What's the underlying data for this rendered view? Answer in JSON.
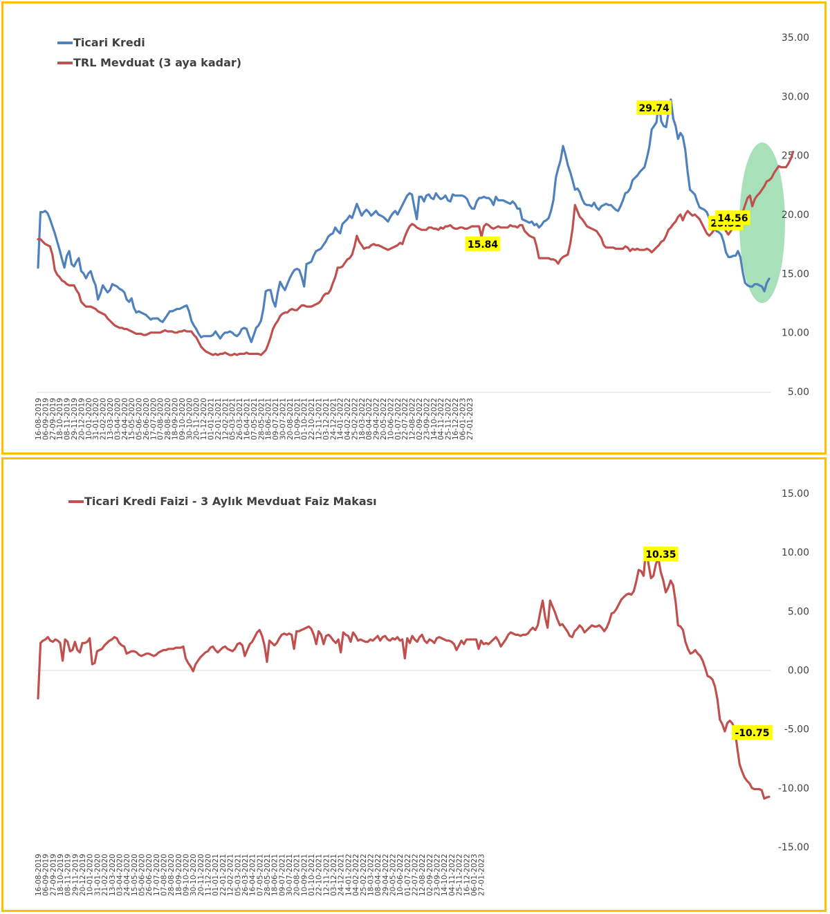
{
  "colors": {
    "frame": "#FFC000",
    "blue": "#4F81BD",
    "red": "#C0504D",
    "callout": "#FFFF00",
    "ellipse": "#92D9A8"
  },
  "x_labels": [
    "16-08-2019",
    "06-09-2019",
    "27-09-2019",
    "18-10-2019",
    "08-11-2019",
    "29-11-2019",
    "20-12-2019",
    "10-01-2020",
    "31-01-2020",
    "21-02-2020",
    "13-03-2020",
    "03-04-2020",
    "24-04-2020",
    "15-05-2020",
    "05-06-2020",
    "26-06-2020",
    "17-07-2020",
    "07-08-2020",
    "28-08-2020",
    "18-09-2020",
    "09-10-2020",
    "30-10-2020",
    "20-11-2020",
    "11-12-2020",
    "01-01-2021",
    "22-01-2021",
    "12-02-2021",
    "05-03-2021",
    "26-03-2021",
    "16-04-2021",
    "07-05-2021",
    "28-05-2021",
    "18-06-2021",
    "09-07-2021",
    "30-07-2021",
    "20-08-2021",
    "10-09-2021",
    "01-10-2021",
    "22-10-2021",
    "12-11-2021",
    "03-12-2021",
    "24-12-2021",
    "14-01-2022",
    "04-02-2022",
    "25-02-2022",
    "18-03-2022",
    "08-04-2022",
    "29-04-2022",
    "20-05-2022",
    "10-06-2022",
    "01-07-2022",
    "22-07-2022",
    "12-08-2022",
    "02-09-2022",
    "23-09-2022",
    "14-10-2022",
    "04-11-2022",
    "25-11-2022",
    "16-12-2022",
    "06-01-2023",
    "27-01-2023"
  ],
  "chart_data": [
    {
      "type": "line",
      "title": "",
      "ylim": [
        5,
        35
      ],
      "yticks": [
        "35.00",
        "30.00",
        "25.00",
        "20.00",
        "15.00",
        "10.00",
        "5.00"
      ],
      "legend_position": "top-left",
      "highlight": "ellipse over last weeks",
      "annotations": [
        {
          "label": "29.74",
          "series": 0,
          "index": 257
        },
        {
          "label": "25.31",
          "series": 1,
          "index": 280
        },
        {
          "label": "15.84",
          "series": 1,
          "index": 189
        },
        {
          "label": "14.56",
          "series": 0,
          "index": 280
        }
      ],
      "series": [
        {
          "name": "Ticari Kredi",
          "color": "#4F81BD",
          "values": [
            15.5,
            20.2,
            20.2,
            20.3,
            20.1,
            19.6,
            19.0,
            18.4,
            17.7,
            17.0,
            16.2,
            15.5,
            16.5,
            16.9,
            15.8,
            15.6,
            16.0,
            16.3,
            15.2,
            15.0,
            14.6,
            15.0,
            15.2,
            14.5,
            14.0,
            12.8,
            13.3,
            14.0,
            13.7,
            13.4,
            13.6,
            14.1,
            14.0,
            13.9,
            13.7,
            13.6,
            13.4,
            12.8,
            12.6,
            12.9,
            12.1,
            11.7,
            11.8,
            11.7,
            11.6,
            11.5,
            11.3,
            11.1,
            11.2,
            11.2,
            11.2,
            11.0,
            10.9,
            11.2,
            11.5,
            11.8,
            11.8,
            11.9,
            12.0,
            12.0,
            12.1,
            12.2,
            12.3,
            11.8,
            11.0,
            10.6,
            10.3,
            9.9,
            9.6,
            9.7,
            9.7,
            9.7,
            9.7,
            9.8,
            10.1,
            9.8,
            9.5,
            9.8,
            10.0,
            10.0,
            10.1,
            10.0,
            9.8,
            9.7,
            9.9,
            10.3,
            10.4,
            10.3,
            9.7,
            9.2,
            9.8,
            10.4,
            10.6,
            11.0,
            12.0,
            13.5,
            13.6,
            13.6,
            12.7,
            12.2,
            13.4,
            14.3,
            13.9,
            13.6,
            14.1,
            14.6,
            15.0,
            15.3,
            15.4,
            15.3,
            14.7,
            13.9,
            15.8,
            15.9,
            16.0,
            16.5,
            16.9,
            17.0,
            17.1,
            17.4,
            17.7,
            18.1,
            18.3,
            18.4,
            18.9,
            18.6,
            18.4,
            19.2,
            19.4,
            19.6,
            19.9,
            19.7,
            20.3,
            20.9,
            20.4,
            19.9,
            20.2,
            20.4,
            20.2,
            19.9,
            20.1,
            20.3,
            20.0,
            19.9,
            19.8,
            19.6,
            19.4,
            19.8,
            20.1,
            20.3,
            20.0,
            20.4,
            20.8,
            21.2,
            21.6,
            21.8,
            21.7,
            20.6,
            19.6,
            21.5,
            21.5,
            21.1,
            21.6,
            21.7,
            21.4,
            21.3,
            21.8,
            21.5,
            21.3,
            21.4,
            21.6,
            21.2,
            21.1,
            21.7,
            21.6,
            21.6,
            21.6,
            21.6,
            21.5,
            21.3,
            20.8,
            20.5,
            20.5,
            21.1,
            21.4,
            21.4,
            21.5,
            21.4,
            21.4,
            21.2,
            20.8,
            21.5,
            21.2,
            21.2,
            21.2,
            21.1,
            21.0,
            20.9,
            21.1,
            20.9,
            20.5,
            20.5,
            19.6,
            19.5,
            19.4,
            19.3,
            19.4,
            19.1,
            19.2,
            18.9,
            19.1,
            19.4,
            19.5,
            19.7,
            20.3,
            21.2,
            23.1,
            23.9,
            24.6,
            25.8,
            25.1,
            24.2,
            23.6,
            22.9,
            22.1,
            22.2,
            21.9,
            21.3,
            20.9,
            20.8,
            20.8,
            20.7,
            21.0,
            20.6,
            20.4,
            20.7,
            20.8,
            20.9,
            20.8,
            20.8,
            20.6,
            20.4,
            20.3,
            20.7,
            21.2,
            21.8,
            21.9,
            22.2,
            22.9,
            23.1,
            23.3,
            23.6,
            23.8,
            24.0,
            24.8,
            25.7,
            27.2,
            27.5,
            27.8,
            29.6,
            27.9,
            27.5,
            27.4,
            28.6,
            29.74,
            28.1,
            27.5,
            26.4,
            26.9,
            26.6,
            25.5,
            23.6,
            22.1,
            21.9,
            21.7,
            21.1,
            20.6,
            20.5,
            20.4,
            20.2,
            19.7,
            19.1,
            18.9,
            18.6,
            18.5,
            18.3,
            17.7,
            16.8,
            16.4,
            16.4,
            16.5,
            16.5,
            16.9,
            16.4,
            15.1,
            14.2,
            14.0,
            13.9,
            13.9,
            14.1,
            14.1,
            14.0,
            13.9,
            13.5,
            14.2,
            14.56
          ]
        },
        {
          "name": "TRL Mevduat (3 aya kadar)",
          "color": "#C0504D",
          "values": [
            17.9,
            17.9,
            17.7,
            17.5,
            17.4,
            17.3,
            16.6,
            15.3,
            14.9,
            14.7,
            14.4,
            14.3,
            14.1,
            14.0,
            14.0,
            14.0,
            13.6,
            13.3,
            12.6,
            12.4,
            12.2,
            12.2,
            12.2,
            12.1,
            12.0,
            11.8,
            11.7,
            11.6,
            11.5,
            11.2,
            11.0,
            10.8,
            10.6,
            10.5,
            10.4,
            10.4,
            10.3,
            10.3,
            10.2,
            10.1,
            10.0,
            9.9,
            9.9,
            9.9,
            9.8,
            9.8,
            9.9,
            10.0,
            10.0,
            10.0,
            10.0,
            10.0,
            10.1,
            10.2,
            10.1,
            10.1,
            10.1,
            10.0,
            10.0,
            10.1,
            10.1,
            10.2,
            10.1,
            10.1,
            10.1,
            9.8,
            9.6,
            9.2,
            8.8,
            8.6,
            8.4,
            8.3,
            8.2,
            8.1,
            8.2,
            8.1,
            8.2,
            8.2,
            8.3,
            8.2,
            8.1,
            8.1,
            8.2,
            8.1,
            8.2,
            8.2,
            8.2,
            8.3,
            8.2,
            8.2,
            8.2,
            8.2,
            8.2,
            8.1,
            8.3,
            8.5,
            9.0,
            9.6,
            10.3,
            10.7,
            11.0,
            11.4,
            11.6,
            11.7,
            11.7,
            11.9,
            12.0,
            11.9,
            11.9,
            12.1,
            12.3,
            12.3,
            12.2,
            12.2,
            12.2,
            12.3,
            12.4,
            12.5,
            12.7,
            13.1,
            13.3,
            13.3,
            13.6,
            14.2,
            14.7,
            15.5,
            15.5,
            15.6,
            15.9,
            16.2,
            16.3,
            16.6,
            17.3,
            18.2,
            17.7,
            17.4,
            17.1,
            17.2,
            17.2,
            17.4,
            17.5,
            17.4,
            17.4,
            17.3,
            17.2,
            17.1,
            17.0,
            17.1,
            17.2,
            17.3,
            17.4,
            17.6,
            17.5,
            18.1,
            18.6,
            19.0,
            19.2,
            19.1,
            18.9,
            18.8,
            18.7,
            18.7,
            18.7,
            18.9,
            18.9,
            18.8,
            18.8,
            18.7,
            18.9,
            18.8,
            19.0,
            19.0,
            19.1,
            18.9,
            18.8,
            18.8,
            18.9,
            18.9,
            18.8,
            18.8,
            18.9,
            19.0,
            19.0,
            19.0,
            19.0,
            18.1,
            19.0,
            19.2,
            19.1,
            18.9,
            18.8,
            18.9,
            19.0,
            18.9,
            18.9,
            18.9,
            18.9,
            19.1,
            19.0,
            19.0,
            18.9,
            19.1,
            19.1,
            18.6,
            18.4,
            18.2,
            18.1,
            18.0,
            17.3,
            16.3,
            16.3,
            16.3,
            16.3,
            16.3,
            16.2,
            16.2,
            16.1,
            15.84,
            16.2,
            16.4,
            16.5,
            16.6,
            17.5,
            18.8,
            20.8,
            20.3,
            19.8,
            19.6,
            19.3,
            19.0,
            18.9,
            18.8,
            18.7,
            18.6,
            18.3,
            18.0,
            17.4,
            17.2,
            17.2,
            17.2,
            17.2,
            17.1,
            17.1,
            17.1,
            17.1,
            17.3,
            17.2,
            16.9,
            17.1,
            17.0,
            17.1,
            17.0,
            17.0,
            17.0,
            17.1,
            17.0,
            16.8,
            17.0,
            17.2,
            17.4,
            17.7,
            17.8,
            18.2,
            18.7,
            18.9,
            19.2,
            19.4,
            19.8,
            20.0,
            19.5,
            20.0,
            20.3,
            20.1,
            19.9,
            20.0,
            19.8,
            19.6,
            19.2,
            18.8,
            18.4,
            18.2,
            18.4,
            18.7,
            19.1,
            19.2,
            19.1,
            19.0,
            18.6,
            18.3,
            18.6,
            18.9,
            19.1,
            19.4,
            19.6,
            20.2,
            20.8,
            21.4,
            21.6,
            20.7,
            21.3,
            21.6,
            21.8,
            22.1,
            22.4,
            22.8,
            22.9,
            23.1,
            23.5,
            23.8,
            24.1,
            24.0,
            24.0,
            24.0,
            24.3,
            24.7,
            25.31
          ]
        }
      ]
    },
    {
      "type": "line",
      "title": "",
      "ylim": [
        -15,
        15
      ],
      "yticks": [
        "15.00",
        "10.00",
        "5.00",
        "0.00",
        "-5.00",
        "-10.00",
        "-15.00"
      ],
      "legend_position": "top-left",
      "annotations": [
        {
          "label": "10.35",
          "series": 0,
          "index": 253
        },
        {
          "label": "-10.75",
          "series": 0,
          "index": 280
        }
      ],
      "series": [
        {
          "name": "Ticari Kredi Faizi - 3 Aylık Mevduat Faiz Makası",
          "color": "#C0504D",
          "values": [
            -2.4,
            2.3,
            2.5,
            2.6,
            2.8,
            2.5,
            2.4,
            2.6,
            2.5,
            2.3,
            0.8,
            2.6,
            2.4,
            1.6,
            1.7,
            2.4,
            1.7,
            1.5,
            2.3,
            2.3,
            2.4,
            2.7,
            0.5,
            0.6,
            1.6,
            1.7,
            1.8,
            2.1,
            2.3,
            2.5,
            2.6,
            2.8,
            2.7,
            2.3,
            2.1,
            2.0,
            1.4,
            1.5,
            1.6,
            1.6,
            1.5,
            1.3,
            1.2,
            1.3,
            1.4,
            1.4,
            1.3,
            1.2,
            1.3,
            1.5,
            1.6,
            1.7,
            1.7,
            1.8,
            1.8,
            1.8,
            1.9,
            1.9,
            1.9,
            2.0,
            1.0,
            0.6,
            0.3,
            -0.1,
            0.5,
            0.8,
            1.1,
            1.3,
            1.5,
            1.6,
            1.9,
            2.0,
            1.7,
            1.5,
            1.7,
            1.9,
            2.0,
            1.8,
            1.7,
            1.6,
            1.8,
            2.2,
            2.3,
            2.1,
            1.2,
            1.7,
            2.2,
            2.4,
            2.8,
            3.2,
            3.4,
            2.9,
            2.1,
            0.7,
            2.5,
            2.3,
            2.1,
            2.3,
            2.7,
            3.0,
            3.1,
            3.0,
            3.1,
            3.0,
            1.8,
            3.3,
            3.3,
            3.4,
            3.5,
            3.6,
            3.7,
            3.5,
            3.0,
            2.2,
            3.3,
            3.0,
            2.2,
            2.9,
            3.0,
            2.8,
            2.5,
            2.3,
            2.6,
            1.5,
            3.2,
            3.0,
            2.9,
            2.4,
            3.2,
            2.9,
            2.5,
            2.6,
            2.5,
            2.4,
            2.4,
            2.6,
            2.5,
            2.7,
            2.9,
            2.5,
            2.8,
            2.9,
            2.6,
            2.5,
            2.7,
            2.6,
            2.8,
            2.5,
            2.6,
            1.0,
            2.7,
            2.3,
            2.9,
            2.6,
            2.4,
            2.8,
            3.0,
            2.5,
            2.3,
            2.6,
            2.5,
            2.3,
            2.7,
            2.8,
            2.7,
            2.6,
            2.5,
            2.5,
            2.4,
            2.2,
            1.7,
            2.1,
            2.5,
            2.2,
            2.6,
            2.6,
            2.6,
            2.6,
            2.6,
            1.8,
            2.5,
            2.2,
            2.3,
            2.2,
            2.4,
            2.6,
            2.8,
            2.5,
            2.0,
            2.3,
            2.6,
            3.0,
            3.2,
            3.1,
            3.0,
            3.0,
            2.9,
            3.0,
            3.0,
            3.1,
            3.4,
            3.6,
            3.4,
            3.8,
            4.9,
            5.9,
            4.5,
            3.6,
            5.9,
            5.4,
            4.9,
            4.3,
            3.8,
            3.9,
            3.6,
            3.3,
            2.9,
            2.8,
            3.3,
            3.5,
            3.8,
            3.6,
            3.2,
            3.4,
            3.6,
            3.8,
            3.7,
            3.7,
            3.8,
            3.6,
            3.3,
            3.6,
            4.1,
            4.8,
            4.9,
            5.2,
            5.6,
            6.0,
            6.2,
            6.4,
            6.5,
            6.4,
            6.7,
            7.5,
            8.5,
            8.4,
            8.0,
            10.35,
            9.0,
            7.8,
            8.0,
            9.0,
            9.5,
            8.3,
            7.6,
            6.6,
            7.0,
            7.6,
            7.2,
            5.8,
            3.8,
            3.7,
            3.4,
            2.4,
            1.8,
            1.4,
            1.5,
            1.7,
            1.4,
            1.2,
            0.8,
            0.2,
            -0.5,
            -0.6,
            -0.8,
            -1.4,
            -2.5,
            -4.2,
            -4.6,
            -5.2,
            -4.5,
            -4.3,
            -4.5,
            -5.0,
            -6.5,
            -8.0,
            -8.6,
            -9.1,
            -9.4,
            -9.6,
            -10.0,
            -10.1,
            -10.1,
            -10.1,
            -10.2,
            -10.9,
            -10.8,
            -10.75
          ]
        }
      ]
    }
  ]
}
